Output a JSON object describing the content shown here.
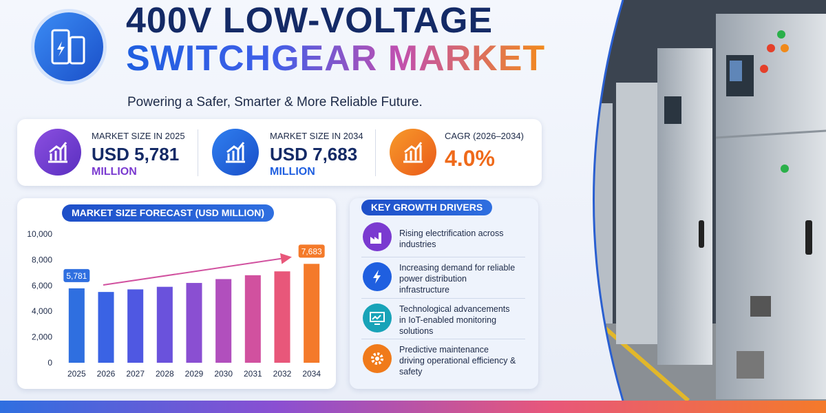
{
  "header": {
    "title_line1": "400V LOW-VOLTAGE",
    "title_line2": "SWITCHGEAR MARKET",
    "subtitle": "Powering a Safer, Smarter & More Reliable Future."
  },
  "stats": [
    {
      "label": "MARKET SIZE IN 2025",
      "value": "USD 5,781",
      "unit": "MILLION"
    },
    {
      "label": "MARKET SIZE IN 2034",
      "value": "USD 7,683",
      "unit": "MILLION"
    },
    {
      "label": "CAGR (2026–2034)",
      "value": "4.0%"
    }
  ],
  "chart_data": {
    "type": "bar",
    "title": "MARKET SIZE FORECAST (USD MILLION)",
    "categories": [
      "2025",
      "2026",
      "2027",
      "2028",
      "2029",
      "2030",
      "2031",
      "2032",
      "2034"
    ],
    "values": [
      5781,
      5500,
      5700,
      5900,
      6200,
      6500,
      6800,
      7100,
      7683
    ],
    "value_labels": [
      "5,781",
      null,
      null,
      null,
      null,
      null,
      null,
      null,
      "7,683"
    ],
    "colors": [
      "#2f6fe0",
      "#3a63e4",
      "#4f58e2",
      "#6a52dc",
      "#8a4fd2",
      "#b14fbd",
      "#d1519f",
      "#e8577a",
      "#f47a2a"
    ],
    "ylim": [
      0,
      10000
    ],
    "yticks": [
      0,
      {
        "value": 2000,
        "label": "2,000"
      },
      {
        "value": 4000,
        "label": "4,000"
      },
      {
        "value": 6000,
        "label": "6,000"
      },
      {
        "value": 8000,
        "label": "8,000"
      },
      {
        "value": 10000,
        "label": "10,000"
      }
    ],
    "grid": false
  },
  "drivers": {
    "title": "KEY GROWTH DRIVERS",
    "items": [
      "Rising electrification across industries",
      "Increasing demand for reliable power distribution infrastructure",
      "Technological advancements in IoT-enabled monitoring solutions",
      "Predictive maintenance driving operational efficiency & safety"
    ]
  }
}
